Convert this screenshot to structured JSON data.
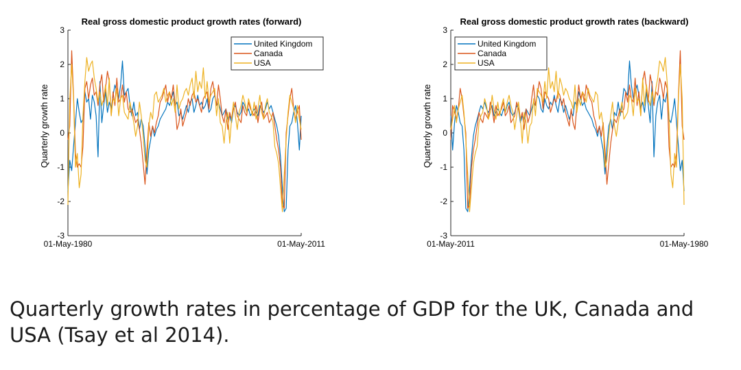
{
  "caption": "Quarterly growth rates in percentage of GDP for the UK, Canada and USA (Tsay et al 2014).",
  "chart_data": [
    {
      "type": "line",
      "title": "Real gross domestic product growth rates (forward)",
      "xlabel": "",
      "ylabel": "Quarterly growth rate",
      "ylim": [
        -3,
        3
      ],
      "yticks": [
        -3,
        -2,
        -1,
        0,
        1,
        2,
        3
      ],
      "xticks": [
        "01-May-1980",
        "01-May-2011"
      ],
      "grid": false,
      "legend": "top-right",
      "x": [
        "1980-Q2",
        "1980-Q3",
        "1980-Q4",
        "1981-Q1",
        "1981-Q2",
        "1981-Q3",
        "1981-Q4",
        "1982-Q1",
        "1982-Q2",
        "1982-Q3",
        "1982-Q4",
        "1983-Q1",
        "1983-Q2",
        "1983-Q3",
        "1983-Q4",
        "1984-Q1",
        "1984-Q2",
        "1984-Q3",
        "1984-Q4",
        "1985-Q1",
        "1985-Q2",
        "1985-Q3",
        "1985-Q4",
        "1986-Q1",
        "1986-Q2",
        "1986-Q3",
        "1986-Q4",
        "1987-Q1",
        "1987-Q2",
        "1987-Q3",
        "1987-Q4",
        "1988-Q1",
        "1988-Q2",
        "1988-Q3",
        "1988-Q4",
        "1989-Q1",
        "1989-Q2",
        "1989-Q3",
        "1989-Q4",
        "1990-Q1",
        "1990-Q2",
        "1990-Q3",
        "1990-Q4",
        "1991-Q1",
        "1991-Q2",
        "1991-Q3",
        "1991-Q4",
        "1992-Q1",
        "1992-Q2",
        "1992-Q3",
        "1992-Q4",
        "1993-Q1",
        "1993-Q2",
        "1993-Q3",
        "1993-Q4",
        "1994-Q1",
        "1994-Q2",
        "1994-Q3",
        "1994-Q4",
        "1995-Q1",
        "1995-Q2",
        "1995-Q3",
        "1995-Q4",
        "1996-Q1",
        "1996-Q2",
        "1996-Q3",
        "1996-Q4",
        "1997-Q1",
        "1997-Q2",
        "1997-Q3",
        "1997-Q4",
        "1998-Q1",
        "1998-Q2",
        "1998-Q3",
        "1998-Q4",
        "1999-Q1",
        "1999-Q2",
        "1999-Q3",
        "1999-Q4",
        "2000-Q1",
        "2000-Q2",
        "2000-Q3",
        "2000-Q4",
        "2001-Q1",
        "2001-Q2",
        "2001-Q3",
        "2001-Q4",
        "2002-Q1",
        "2002-Q2",
        "2002-Q3",
        "2002-Q4",
        "2003-Q1",
        "2003-Q2",
        "2003-Q3",
        "2003-Q4",
        "2004-Q1",
        "2004-Q2",
        "2004-Q3",
        "2004-Q4",
        "2005-Q1",
        "2005-Q2",
        "2005-Q3",
        "2005-Q4",
        "2006-Q1",
        "2006-Q2",
        "2006-Q3",
        "2006-Q4",
        "2007-Q1",
        "2007-Q2",
        "2007-Q3",
        "2007-Q4",
        "2008-Q1",
        "2008-Q2",
        "2008-Q3",
        "2008-Q4",
        "2009-Q1",
        "2009-Q2",
        "2009-Q3",
        "2009-Q4",
        "2010-Q1",
        "2010-Q2",
        "2010-Q3",
        "2010-Q4",
        "2011-Q1",
        "2011-Q2"
      ],
      "series": [
        {
          "name": "United Kingdom",
          "color": "#0072BD",
          "values": [
            -1.7,
            -0.8,
            -1.1,
            -0.4,
            0.3,
            1.0,
            0.6,
            0.3,
            0.4,
            1.2,
            0.9,
            1.0,
            0.4,
            1.1,
            0.9,
            0.5,
            -0.7,
            1.5,
            0.3,
            0.8,
            1.2,
            0.6,
            0.9,
            0.7,
            1.1,
            1.4,
            1.2,
            1.0,
            1.4,
            2.1,
            1.1,
            1.2,
            1.3,
            0.8,
            0.5,
            0.9,
            0.5,
            0.6,
            0.1,
            0.4,
            0.2,
            -0.4,
            -1.2,
            -0.5,
            -0.2,
            0.2,
            -0.1,
            0.1,
            0.2,
            0.4,
            0.5,
            0.6,
            0.7,
            0.9,
            0.8,
            1.0,
            1.2,
            0.8,
            0.9,
            0.5,
            0.6,
            0.4,
            0.6,
            0.8,
            0.6,
            0.9,
            1.0,
            0.6,
            0.8,
            1.1,
            0.8,
            0.9,
            0.7,
            0.8,
            1.0,
            0.6,
            0.7,
            1.0,
            1.1,
            0.8,
            0.9,
            0.7,
            0.5,
            0.6,
            0.7,
            0.4,
            0.5,
            0.3,
            0.7,
            0.8,
            0.6,
            0.5,
            0.6,
            0.9,
            0.8,
            0.6,
            0.7,
            0.5,
            0.6,
            0.7,
            0.6,
            0.5,
            0.8,
            0.7,
            0.6,
            0.7,
            0.9,
            0.7,
            0.8,
            0.6,
            0.4,
            0.2,
            -0.1,
            -0.7,
            -1.6,
            -2.3,
            -2.2,
            -0.5,
            0.2,
            0.3,
            0.6,
            0.8,
            0.3,
            -0.5,
            0.5
          ]
        },
        {
          "name": "Canada",
          "color": "#D95319",
          "values": [
            -0.2,
            0.2,
            2.4,
            1.1,
            -0.6,
            -1.0,
            -0.9,
            -1.0,
            -0.4,
            1.3,
            1.5,
            1.0,
            1.4,
            1.6,
            1.1,
            1.2,
            0.8,
            1.4,
            1.7,
            0.9,
            1.3,
            1.8,
            1.5,
            0.5,
            1.2,
            0.8,
            1.6,
            0.9,
            1.0,
            1.4,
            0.9,
            1.2,
            0.7,
            0.6,
            0.7,
            0.5,
            0.3,
            0.4,
            0.1,
            -0.3,
            -0.9,
            -1.5,
            -0.5,
            0.3,
            -0.1,
            0.2,
            0.0,
            0.3,
            0.5,
            0.9,
            1.0,
            1.2,
            1.4,
            0.9,
            1.2,
            1.0,
            1.4,
            0.8,
            0.1,
            0.3,
            0.7,
            0.2,
            0.4,
            0.6,
            1.0,
            0.8,
            1.1,
            1.2,
            0.9,
            1.0,
            0.8,
            0.6,
            1.0,
            1.1,
            1.2,
            0.7,
            1.3,
            1.5,
            1.1,
            0.8,
            1.4,
            1.0,
            0.5,
            0.3,
            0.7,
            0.1,
            0.6,
            0.4,
            0.7,
            0.9,
            0.5,
            0.4,
            0.3,
            0.8,
            0.6,
            0.5,
            0.9,
            0.7,
            0.6,
            0.5,
            0.8,
            0.3,
            0.7,
            0.9,
            0.4,
            0.5,
            0.6,
            0.3,
            0.4,
            0.6,
            0.2,
            -0.2,
            -0.5,
            -1.0,
            -2.1,
            -2.2,
            0.0,
            0.5,
            1.0,
            1.3,
            0.7,
            0.4,
            0.6,
            0.8,
            -0.2
          ]
        },
        {
          "name": "USA",
          "color": "#EDB120",
          "values": [
            -2.1,
            1.0,
            2.0,
            1.0,
            -1.0,
            -0.6,
            -1.6,
            -1.2,
            0.5,
            1.5,
            2.2,
            1.8,
            2.0,
            2.1,
            1.6,
            1.3,
            0.9,
            1.2,
            0.8,
            1.0,
            1.4,
            0.8,
            1.6,
            0.5,
            1.0,
            0.9,
            1.3,
            0.5,
            1.0,
            1.1,
            0.6,
            0.5,
            0.4,
            0.9,
            0.6,
            0.3,
            -0.1,
            0.2,
            0.9,
            0.5,
            -0.1,
            -0.8,
            -1.0,
            0.2,
            0.6,
            0.4,
            1.1,
            1.2,
            0.9,
            1.0,
            1.1,
            1.3,
            0.9,
            1.1,
            1.2,
            0.8,
            1.0,
            0.6,
            1.4,
            0.7,
            0.9,
            1.0,
            1.2,
            1.3,
            1.1,
            1.4,
            1.6,
            1.0,
            1.8,
            1.2,
            1.5,
            1.3,
            1.9,
            1.0,
            1.5,
            0.9,
            1.1,
            1.2,
            1.3,
            0.5,
            1.0,
            0.3,
            0.2,
            -0.3,
            0.3,
            0.6,
            -0.3,
            0.4,
            0.9,
            0.5,
            0.1,
            0.6,
            0.8,
            1.1,
            0.9,
            0.6,
            1.0,
            0.8,
            0.5,
            0.9,
            0.4,
            0.7,
            1.1,
            0.6,
            0.4,
            0.8,
            1.0,
            0.6,
            0.5,
            0.3,
            -0.4,
            -0.6,
            -0.9,
            -1.6,
            -2.3,
            -1.2,
            -0.2,
            0.6,
            1.1,
            0.9,
            0.7,
            0.3,
            0.8,
            0.4,
            0.1
          ]
        }
      ]
    },
    {
      "type": "line",
      "title": "Real gross domestic product growth rates (backward)",
      "xlabel": "",
      "ylabel": "Quarterly growth rate",
      "ylim": [
        -3,
        3
      ],
      "yticks": [
        -3,
        -2,
        -1,
        0,
        1,
        2,
        3
      ],
      "xticks": [
        "01-May-2011",
        "01-May-1980"
      ],
      "grid": false,
      "legend": "top-left",
      "x_order": "reversed (2011-Q2 to 1980-Q2)",
      "series_source": "same series as forward chart, plotted in reverse time order"
    }
  ]
}
